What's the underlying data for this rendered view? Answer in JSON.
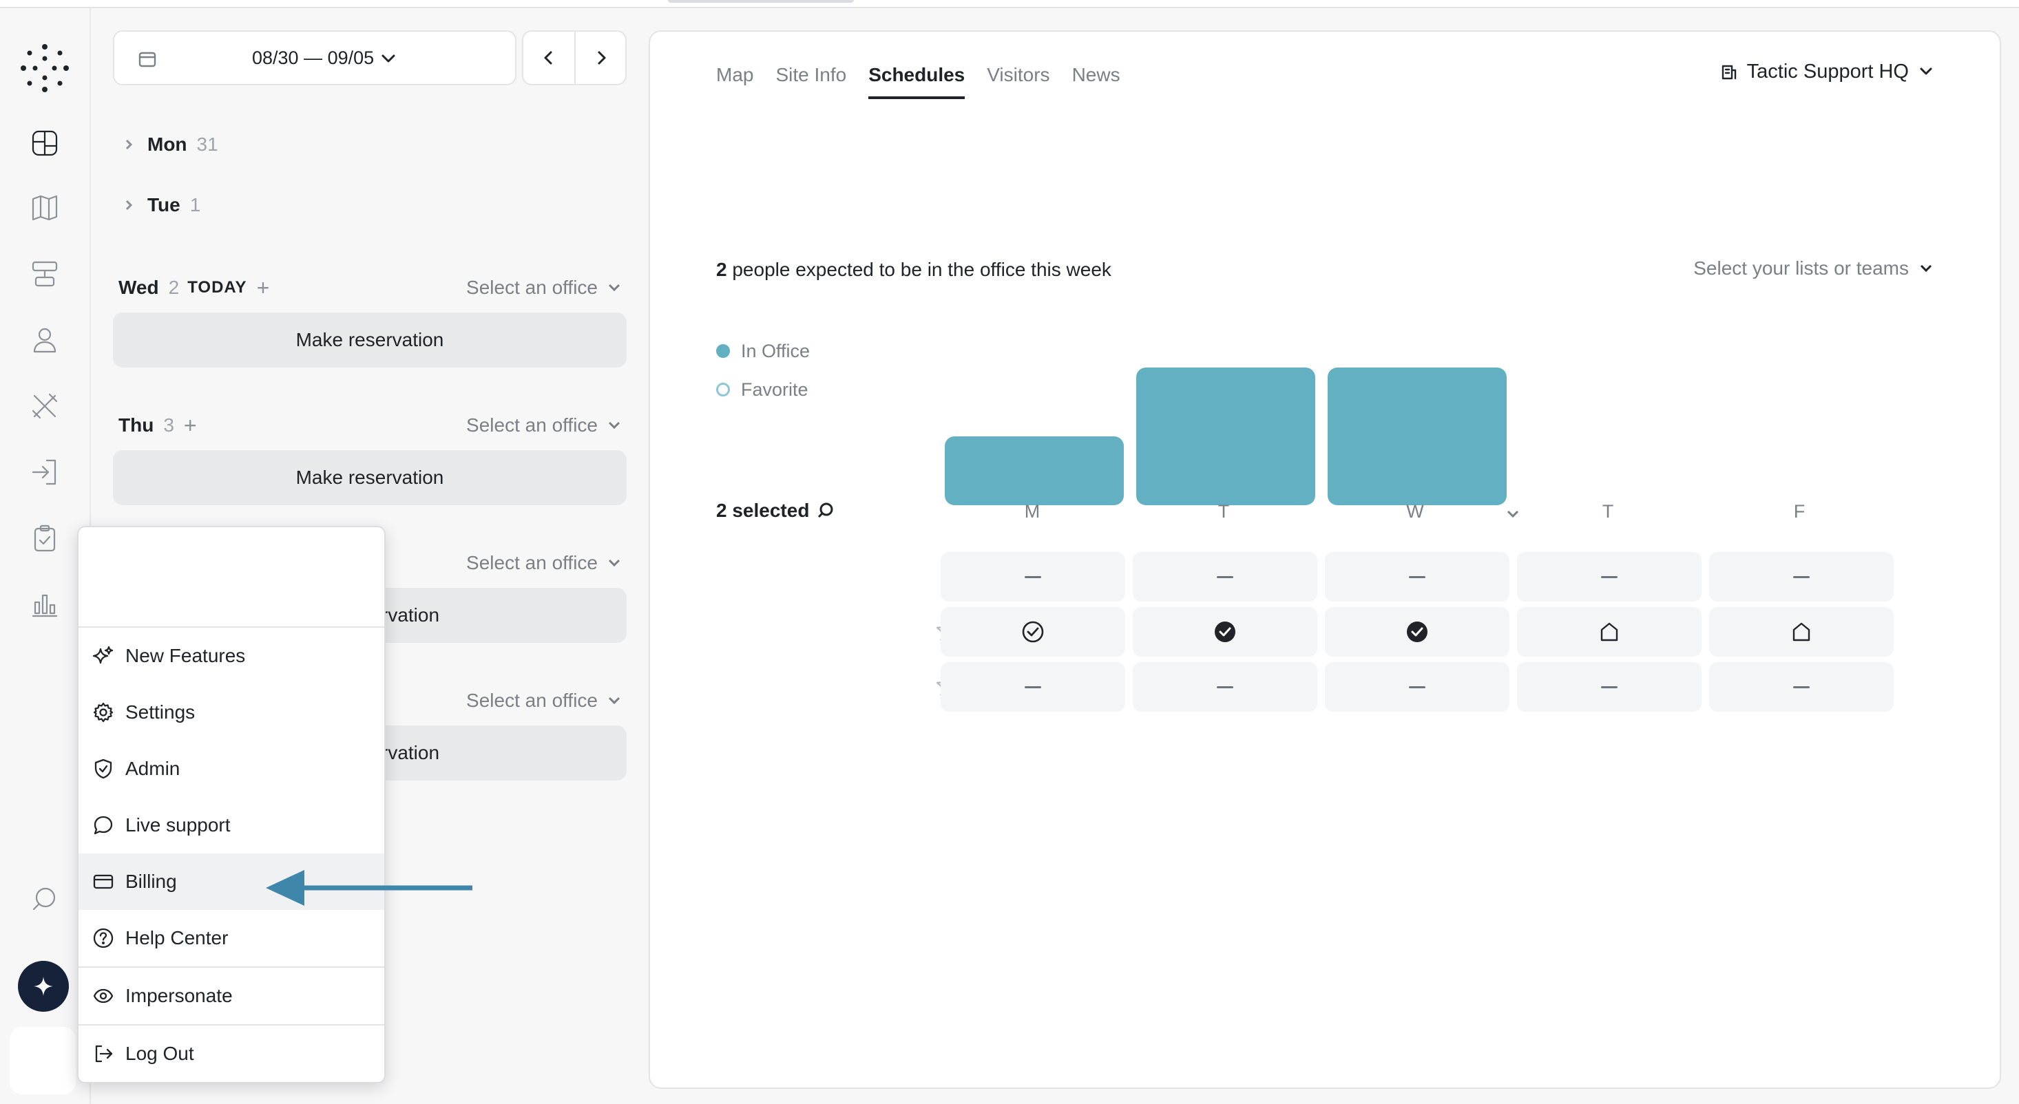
{
  "date_range": {
    "label": "08/30 — 09/05"
  },
  "days": [
    {
      "name": "Mon",
      "num": "31"
    },
    {
      "name": "Tue",
      "num": "1"
    },
    {
      "name": "Wed",
      "num": "2",
      "today": "TODAY",
      "office_placeholder": "Select an office",
      "button": "Make reservation"
    },
    {
      "name": "Thu",
      "num": "3",
      "office_placeholder": "Select an office",
      "button": "Make reservation"
    },
    {
      "office_placeholder": "Select an office",
      "button_partial": "rvation"
    },
    {
      "office_placeholder": "Select an office",
      "button_partial": "rvation"
    }
  ],
  "menu": {
    "items": [
      {
        "label": "New Features",
        "icon": "sparkles-icon"
      },
      {
        "label": "Settings",
        "icon": "gear-icon"
      },
      {
        "label": "Admin",
        "icon": "shield-icon"
      },
      {
        "label": "Live support",
        "icon": "chat-icon"
      },
      {
        "label": "Billing",
        "icon": "credit-card-icon"
      },
      {
        "label": "Help Center",
        "icon": "help-icon"
      },
      {
        "label": "Impersonate",
        "icon": "eye-icon"
      },
      {
        "label": "Log Out",
        "icon": "logout-icon"
      }
    ]
  },
  "tabs": [
    "Map",
    "Site Info",
    "Schedules",
    "Visitors",
    "News"
  ],
  "site": {
    "name": "Tactic Support HQ"
  },
  "schedule": {
    "expected_count": "2",
    "expected_text": "people expected to be in the office this week",
    "teams_placeholder": "Select your lists or teams",
    "selected_label": "2 selected",
    "day_letters": [
      "M",
      "T",
      "W",
      "T",
      "F"
    ]
  },
  "legend": [
    {
      "label": "In Office",
      "color": "#62b0c2",
      "filled": true
    },
    {
      "label": "Favorite",
      "color": "#8ec7d4",
      "filled": false
    }
  ],
  "chart_data": {
    "type": "bar",
    "categories": [
      "M",
      "T",
      "W",
      "T",
      "F"
    ],
    "series": [
      {
        "name": "In Office",
        "values": [
          1,
          2,
          2,
          0,
          0
        ]
      }
    ],
    "ylim": [
      0,
      2
    ],
    "color": "#62b0c2"
  },
  "grid": {
    "rows": [
      {
        "star": false,
        "cells": [
          "dash",
          "dash",
          "dash",
          "dash",
          "dash"
        ]
      },
      {
        "star": true,
        "cells": [
          "check-outline",
          "check-filled",
          "check-filled",
          "home",
          "home"
        ]
      },
      {
        "star": true,
        "cells": [
          "dash",
          "dash",
          "dash",
          "dash",
          "dash"
        ]
      }
    ]
  }
}
